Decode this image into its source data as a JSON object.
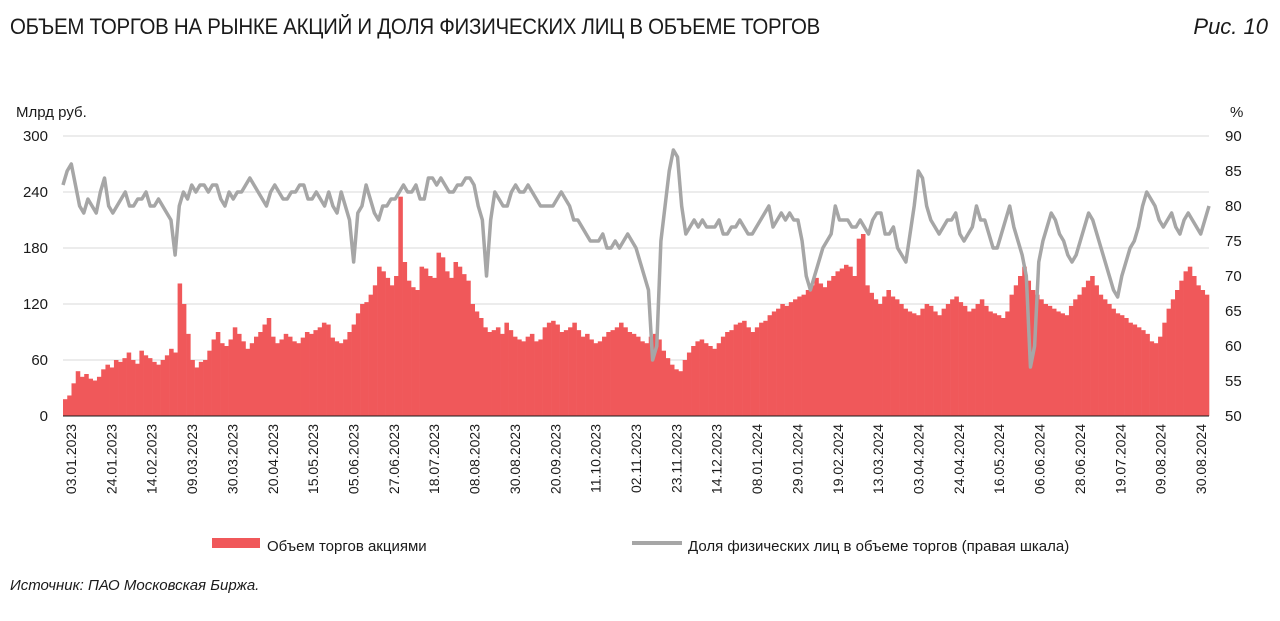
{
  "header": {
    "title": "ОБЪЕМ ТОРГОВ НА РЫНКЕ АКЦИЙ И ДОЛЯ ФИЗИЧЕСКИХ ЛИЦ В ОБЪЕМЕ ТОРГОВ",
    "figure_label": "Рис. 10"
  },
  "footer": {
    "source": "Источник: ПАО Московская Биржа."
  },
  "chart_data": {
    "type": "bar",
    "title": "ОБЪЕМ ТОРГОВ НА РЫНКЕ АКЦИЙ И ДОЛЯ ФИЗИЧЕСКИХ ЛИЦ В ОБЪЕМЕ ТОРГОВ",
    "y_left": {
      "label": "Млрд руб.",
      "range": [
        0,
        300
      ],
      "ticks": [
        0,
        60,
        120,
        180,
        240,
        300
      ]
    },
    "y_right": {
      "label": "%",
      "range": [
        50,
        90
      ],
      "ticks": [
        50,
        55,
        60,
        65,
        70,
        75,
        80,
        85,
        90
      ]
    },
    "grid": "horizontal",
    "legend_position": "bottom",
    "x_tick_labels": [
      "03.01.2023",
      "24.01.2023",
      "14.02.2023",
      "09.03.2023",
      "30.03.2023",
      "20.04.2023",
      "15.05.2023",
      "05.06.2023",
      "27.06.2023",
      "18.07.2023",
      "08.08.2023",
      "30.08.2023",
      "20.09.2023",
      "11.10.2023",
      "02.11.2023",
      "23.11.2023",
      "14.12.2023",
      "08.01.2024",
      "29.01.2024",
      "19.02.2024",
      "13.03.2024",
      "03.04.2024",
      "24.04.2024",
      "16.05.2024",
      "06.06.2024",
      "28.06.2024",
      "19.07.2024",
      "09.08.2024",
      "30.08.2024"
    ],
    "series": [
      {
        "name": "Объем торгов акциями",
        "kind": "bar",
        "axis": "left",
        "color": "#f0585a",
        "values": [
          18,
          22,
          35,
          48,
          42,
          45,
          40,
          38,
          42,
          50,
          55,
          52,
          60,
          58,
          62,
          68,
          60,
          56,
          70,
          65,
          62,
          58,
          55,
          60,
          65,
          72,
          68,
          142,
          120,
          88,
          60,
          52,
          58,
          60,
          70,
          82,
          90,
          78,
          75,
          82,
          95,
          88,
          80,
          72,
          78,
          85,
          90,
          98,
          105,
          85,
          78,
          82,
          88,
          85,
          80,
          78,
          84,
          90,
          88,
          92,
          95,
          100,
          98,
          84,
          80,
          78,
          82,
          90,
          98,
          110,
          120,
          122,
          130,
          140,
          160,
          155,
          148,
          140,
          150,
          235,
          165,
          145,
          138,
          135,
          160,
          158,
          150,
          148,
          175,
          170,
          155,
          148,
          165,
          160,
          152,
          145,
          120,
          112,
          105,
          95,
          90,
          92,
          95,
          88,
          100,
          92,
          85,
          82,
          80,
          85,
          88,
          80,
          82,
          95,
          100,
          102,
          98,
          90,
          92,
          95,
          100,
          92,
          85,
          88,
          82,
          78,
          80,
          85,
          90,
          92,
          95,
          100,
          95,
          90,
          88,
          85,
          80,
          78,
          85,
          88,
          82,
          70,
          62,
          55,
          50,
          48,
          60,
          68,
          75,
          80,
          82,
          78,
          75,
          72,
          78,
          85,
          90,
          92,
          98,
          100,
          102,
          95,
          90,
          95,
          100,
          102,
          108,
          112,
          115,
          120,
          118,
          122,
          125,
          128,
          130,
          135,
          140,
          148,
          142,
          138,
          145,
          150,
          155,
          158,
          162,
          160,
          150,
          190,
          195,
          140,
          132,
          125,
          120,
          128,
          135,
          128,
          125,
          120,
          115,
          112,
          110,
          108,
          115,
          120,
          118,
          112,
          108,
          115,
          120,
          125,
          128,
          122,
          118,
          112,
          115,
          120,
          125,
          118,
          112,
          110,
          108,
          105,
          112,
          130,
          140,
          150,
          160,
          145,
          135,
          130,
          125,
          120,
          118,
          115,
          112,
          110,
          108,
          118,
          125,
          130,
          138,
          145,
          150,
          140,
          130,
          125,
          120,
          115,
          110,
          108,
          105,
          100,
          98,
          95,
          92,
          88,
          80,
          78,
          85,
          100,
          115,
          125,
          135,
          145,
          155,
          160,
          150,
          140,
          135,
          130
        ]
      },
      {
        "name": "Доля физических лиц в объеме торгов (правая шкала)",
        "kind": "line",
        "axis": "right",
        "color": "#a6a6a6",
        "values": [
          83,
          85,
          86,
          83,
          80,
          79,
          81,
          80,
          79,
          82,
          84,
          80,
          79,
          80,
          81,
          82,
          80,
          80,
          81,
          81,
          82,
          80,
          80,
          81,
          80,
          79,
          78,
          73,
          80,
          82,
          81,
          83,
          82,
          83,
          83,
          82,
          83,
          83,
          81,
          80,
          82,
          81,
          82,
          82,
          83,
          84,
          83,
          82,
          81,
          80,
          82,
          83,
          82,
          81,
          81,
          82,
          82,
          83,
          83,
          81,
          81,
          82,
          81,
          80,
          82,
          80,
          79,
          82,
          80,
          78,
          72,
          79,
          80,
          83,
          81,
          79,
          78,
          80,
          80,
          81,
          81,
          82,
          83,
          82,
          82,
          83,
          81,
          81,
          84,
          84,
          83,
          84,
          83,
          82,
          82,
          83,
          83,
          84,
          84,
          83,
          80,
          78,
          70,
          78,
          82,
          81,
          80,
          80,
          82,
          83,
          82,
          82,
          83,
          82,
          81,
          80,
          80,
          80,
          80,
          81,
          82,
          81,
          80,
          78,
          78,
          77,
          76,
          75,
          75,
          75,
          76,
          74,
          74,
          75,
          74,
          75,
          76,
          75,
          74,
          72,
          70,
          68,
          58,
          60,
          75,
          80,
          85,
          88,
          87,
          80,
          76,
          77,
          78,
          77,
          78,
          77,
          77,
          77,
          78,
          76,
          76,
          77,
          77,
          78,
          77,
          76,
          76,
          77,
          78,
          79,
          80,
          77,
          78,
          79,
          78,
          79,
          78,
          78,
          75,
          70,
          68,
          70,
          72,
          74,
          75,
          76,
          80,
          78,
          78,
          78,
          77,
          77,
          78,
          77,
          76,
          78,
          79,
          79,
          76,
          76,
          77,
          74,
          73,
          72,
          76,
          80,
          85,
          84,
          80,
          78,
          77,
          76,
          77,
          78,
          78,
          79,
          76,
          75,
          76,
          77,
          80,
          78,
          78,
          76,
          74,
          74,
          76,
          78,
          80,
          77,
          75,
          73,
          70,
          57,
          60,
          72,
          75,
          77,
          79,
          78,
          76,
          75,
          73,
          72,
          73,
          75,
          77,
          79,
          78,
          76,
          74,
          72,
          70,
          68,
          67,
          70,
          72,
          74,
          75,
          77,
          80,
          82,
          81,
          80,
          78,
          77,
          78,
          79,
          77,
          76,
          78,
          79,
          78,
          77,
          76,
          78,
          80
        ]
      }
    ]
  }
}
